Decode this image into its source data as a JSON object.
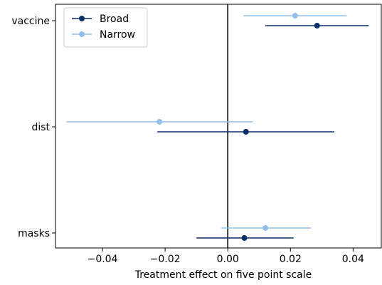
{
  "chart_data": {
    "type": "scatter",
    "subtype": "coefficient-plot-with-error-bars",
    "orientation": "horizontal",
    "title": "",
    "xlabel": "Treatment effect on five point scale",
    "ylabel": "",
    "xlim": [
      -0.055,
      0.049
    ],
    "x_ticks": [
      -0.04,
      -0.02,
      0.0,
      0.02,
      0.04
    ],
    "x_tick_labels": [
      "−0.04",
      "−0.02",
      "0.00",
      "0.02",
      "0.04"
    ],
    "categories": [
      "vaccine",
      "dist",
      "masks"
    ],
    "reference_line_x": 0,
    "grid": false,
    "legend_position": "top-left",
    "series": [
      {
        "name": "Broad",
        "color": "#0b2f6b",
        "points": [
          {
            "category": "vaccine",
            "estimate": 0.0285,
            "ci_low": 0.012,
            "ci_high": 0.045
          },
          {
            "category": "dist",
            "estimate": 0.0058,
            "ci_low": -0.0225,
            "ci_high": 0.034
          },
          {
            "category": "masks",
            "estimate": 0.0053,
            "ci_low": -0.01,
            "ci_high": 0.021
          }
        ]
      },
      {
        "name": "Narrow",
        "color": "#92c1ee",
        "points": [
          {
            "category": "vaccine",
            "estimate": 0.0215,
            "ci_low": 0.005,
            "ci_high": 0.038
          },
          {
            "category": "dist",
            "estimate": -0.0218,
            "ci_low": -0.0515,
            "ci_high": 0.008
          },
          {
            "category": "masks",
            "estimate": 0.012,
            "ci_low": -0.002,
            "ci_high": 0.0265
          }
        ]
      }
    ]
  }
}
